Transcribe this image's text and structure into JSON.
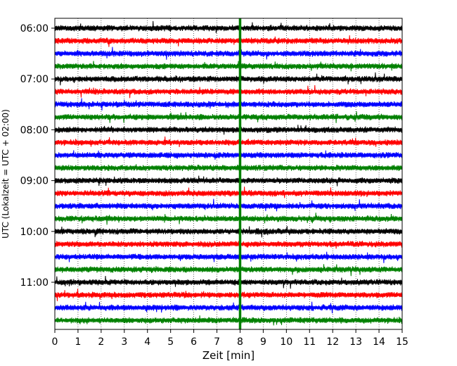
{
  "chart_data": {
    "type": "line",
    "title": "",
    "xlabel": "Zeit  [min]",
    "ylabel": "UTC (Lokalzeit = UTC + 02:00)",
    "xlim": [
      0,
      15
    ],
    "x_ticks": [
      0,
      1,
      2,
      3,
      4,
      5,
      6,
      7,
      8,
      9,
      10,
      11,
      12,
      13,
      14,
      15
    ],
    "x_tick_labels": [
      "0",
      "1",
      "2",
      "3",
      "4",
      "5",
      "6",
      "7",
      "8",
      "9",
      "10",
      "11",
      "12",
      "13",
      "14",
      "15"
    ],
    "y_tick_labels": [
      "06:00",
      "07:00",
      "08:00",
      "09:00",
      "10:00",
      "11:00"
    ],
    "grid": "vertical dotted at each minute",
    "trace_interval_min": 15,
    "trace_colors": [
      "#000000",
      "#ff0000",
      "#0000ff",
      "#008000"
    ],
    "series": [
      {
        "start": "06:00",
        "color": "#000000"
      },
      {
        "start": "06:15",
        "color": "#ff0000"
      },
      {
        "start": "06:30",
        "color": "#0000ff"
      },
      {
        "start": "06:45",
        "color": "#008000"
      },
      {
        "start": "07:00",
        "color": "#000000"
      },
      {
        "start": "07:15",
        "color": "#ff0000"
      },
      {
        "start": "07:30",
        "color": "#0000ff"
      },
      {
        "start": "07:45",
        "color": "#008000"
      },
      {
        "start": "08:00",
        "color": "#000000"
      },
      {
        "start": "08:15",
        "color": "#ff0000"
      },
      {
        "start": "08:30",
        "color": "#0000ff"
      },
      {
        "start": "08:45",
        "color": "#008000"
      },
      {
        "start": "09:00",
        "color": "#000000"
      },
      {
        "start": "09:15",
        "color": "#ff0000"
      },
      {
        "start": "09:30",
        "color": "#0000ff"
      },
      {
        "start": "09:45",
        "color": "#008000"
      },
      {
        "start": "10:00",
        "color": "#000000"
      },
      {
        "start": "10:15",
        "color": "#ff0000"
      },
      {
        "start": "10:30",
        "color": "#0000ff"
      },
      {
        "start": "10:45",
        "color": "#008000"
      },
      {
        "start": "11:00",
        "color": "#000000"
      },
      {
        "start": "11:15",
        "color": "#ff0000"
      },
      {
        "start": "11:30",
        "color": "#0000ff"
      },
      {
        "start": "11:45",
        "color": "#008000"
      }
    ],
    "annotations": [
      {
        "type": "vertical-line",
        "x": 8.0,
        "color": "#008000"
      }
    ]
  }
}
